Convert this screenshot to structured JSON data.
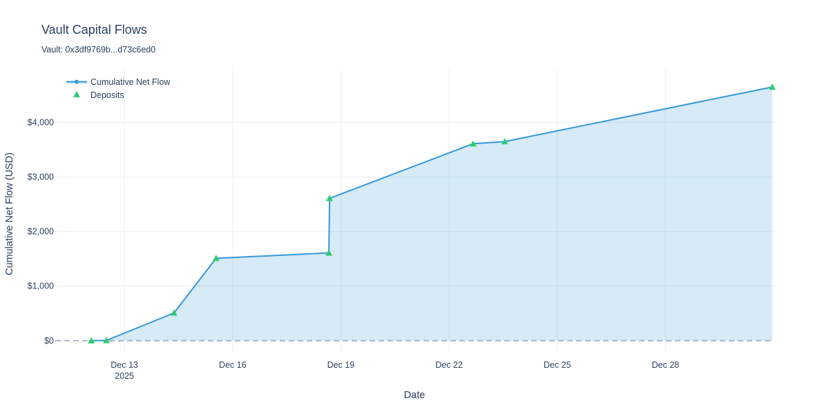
{
  "header": {
    "title": "Vault Capital Flows",
    "subtitle": "Vault: 0x3df9769b...d73c6ed0"
  },
  "colors": {
    "line": "#3498db",
    "fill": "rgba(52,152,219,0.2)",
    "deposit_marker": "#2ecc71",
    "zero_line": "#aab4c2",
    "grid": "#eef0f3"
  },
  "chart_data": {
    "type": "area",
    "title": "Vault Capital Flows",
    "subtitle": "Vault: 0x3df9769b...d73c6ed0",
    "xlabel": "Date",
    "ylabel": "Cumulative Net Flow (USD)",
    "x_ticks": [
      {
        "date": "2025-12-13",
        "label": "Dec 13",
        "sublabel": "2025"
      },
      {
        "date": "2025-12-16",
        "label": "Dec 16",
        "sublabel": ""
      },
      {
        "date": "2025-12-19",
        "label": "Dec 19",
        "sublabel": ""
      },
      {
        "date": "2025-12-22",
        "label": "Dec 22",
        "sublabel": ""
      },
      {
        "date": "2025-12-25",
        "label": "Dec 25",
        "sublabel": ""
      },
      {
        "date": "2025-12-28",
        "label": "Dec 28",
        "sublabel": ""
      }
    ],
    "y_ticks": [
      {
        "value": 0,
        "label": "$0"
      },
      {
        "value": 1000,
        "label": "$1,000"
      },
      {
        "value": 2000,
        "label": "$2,000"
      },
      {
        "value": 3000,
        "label": "$3,000"
      },
      {
        "value": 4000,
        "label": "$4,000"
      }
    ],
    "xlim": [
      "2025-12-11T02:00",
      "2025-12-31T00:00"
    ],
    "ylim": [
      -230,
      4980
    ],
    "legend": {
      "placement": "top-left"
    },
    "series": [
      {
        "name": "Cumulative Net Flow",
        "type": "line-area",
        "points": [
          {
            "x": "2025-12-12T02:00",
            "y": 0
          },
          {
            "x": "2025-12-12T12:00",
            "y": 5
          },
          {
            "x": "2025-12-14T09:00",
            "y": 510
          },
          {
            "x": "2025-12-15T13:00",
            "y": 1510
          },
          {
            "x": "2025-12-18T16:00",
            "y": 1610
          },
          {
            "x": "2025-12-18T16:30",
            "y": 2610
          },
          {
            "x": "2025-12-22T16:00",
            "y": 3610
          },
          {
            "x": "2025-12-23T13:00",
            "y": 3650
          },
          {
            "x": "2025-12-30T23:00",
            "y": 4650
          }
        ]
      },
      {
        "name": "Deposits",
        "type": "markers",
        "points": [
          {
            "x": "2025-12-12T02:00",
            "y": 0
          },
          {
            "x": "2025-12-12T12:00",
            "y": 5
          },
          {
            "x": "2025-12-14T09:00",
            "y": 510
          },
          {
            "x": "2025-12-15T13:00",
            "y": 1510
          },
          {
            "x": "2025-12-18T16:00",
            "y": 1610
          },
          {
            "x": "2025-12-18T16:30",
            "y": 2610
          },
          {
            "x": "2025-12-22T16:00",
            "y": 3610
          },
          {
            "x": "2025-12-23T13:00",
            "y": 3650
          },
          {
            "x": "2025-12-30T23:00",
            "y": 4650
          }
        ]
      }
    ]
  }
}
